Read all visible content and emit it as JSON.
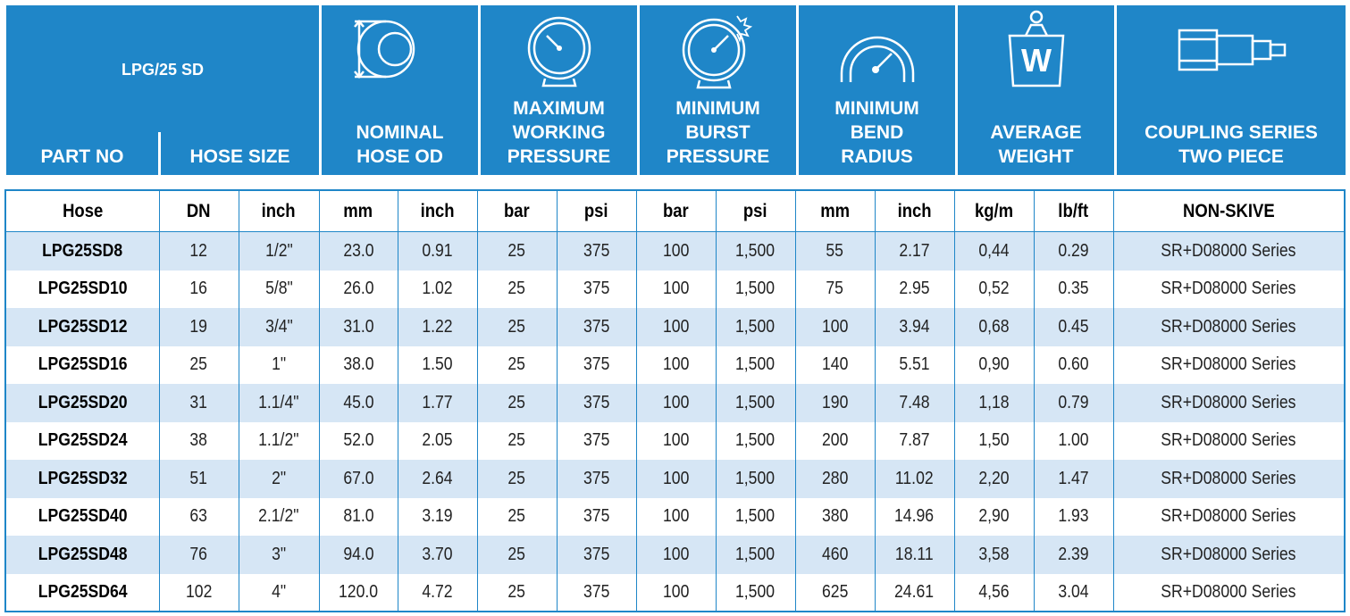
{
  "header": {
    "title": "LPG/25 SD",
    "part_no_label": "PART NO",
    "hose_size_label": "HOSE SIZE",
    "nominal_od_label": "NOMINAL\nHOSE OD",
    "max_working_label": "MAXIMUM\nWORKING\nPRESSURE",
    "min_burst_label": "MINIMUM\nBURST\nPRESSURE",
    "min_bend_label": "MINIMUM\nBEND\nRADIUS",
    "avg_weight_label": "AVERAGE\nWEIGHT",
    "coupling_label": "COUPLING SERIES\nTWO PIECE",
    "weight_icon_letter": "W",
    "accent_color": "#1f86c8",
    "row_alt_color": "#d6e6f5"
  },
  "table": {
    "columns": [
      "Hose",
      "DN",
      "inch",
      "mm",
      "inch",
      "bar",
      "psi",
      "bar",
      "psi",
      "mm",
      "inch",
      "kg/m",
      "lb/ft",
      "NON-SKIVE"
    ],
    "rows": [
      [
        "LPG25SD8",
        "12",
        "1/2\"",
        "23.0",
        "0.91",
        "25",
        "375",
        "100",
        "1,500",
        "55",
        "2.17",
        "0,44",
        "0.29",
        "SR+D08000 Series"
      ],
      [
        "LPG25SD10",
        "16",
        "5/8\"",
        "26.0",
        "1.02",
        "25",
        "375",
        "100",
        "1,500",
        "75",
        "2.95",
        "0,52",
        "0.35",
        "SR+D08000 Series"
      ],
      [
        "LPG25SD12",
        "19",
        "3/4\"",
        "31.0",
        "1.22",
        "25",
        "375",
        "100",
        "1,500",
        "100",
        "3.94",
        "0,68",
        "0.45",
        "SR+D08000 Series"
      ],
      [
        "LPG25SD16",
        "25",
        "1\"",
        "38.0",
        "1.50",
        "25",
        "375",
        "100",
        "1,500",
        "140",
        "5.51",
        "0,90",
        "0.60",
        "SR+D08000 Series"
      ],
      [
        "LPG25SD20",
        "31",
        "1.1/4\"",
        "45.0",
        "1.77",
        "25",
        "375",
        "100",
        "1,500",
        "190",
        "7.48",
        "1,18",
        "0.79",
        "SR+D08000 Series"
      ],
      [
        "LPG25SD24",
        "38",
        "1.1/2\"",
        "52.0",
        "2.05",
        "25",
        "375",
        "100",
        "1,500",
        "200",
        "7.87",
        "1,50",
        "1.00",
        "SR+D08000 Series"
      ],
      [
        "LPG25SD32",
        "51",
        "2\"",
        "67.0",
        "2.64",
        "25",
        "375",
        "100",
        "1,500",
        "280",
        "11.02",
        "2,20",
        "1.47",
        "SR+D08000 Series"
      ],
      [
        "LPG25SD40",
        "63",
        "2.1/2\"",
        "81.0",
        "3.19",
        "25",
        "375",
        "100",
        "1,500",
        "380",
        "14.96",
        "2,90",
        "1.93",
        "SR+D08000 Series"
      ],
      [
        "LPG25SD48",
        "76",
        "3\"",
        "94.0",
        "3.70",
        "25",
        "375",
        "100",
        "1,500",
        "460",
        "18.11",
        "3,58",
        "2.39",
        "SR+D08000 Series"
      ],
      [
        "LPG25SD64",
        "102",
        "4\"",
        "120.0",
        "4.72",
        "25",
        "375",
        "100",
        "1,500",
        "625",
        "24.61",
        "4,56",
        "3.04",
        "SR+D08000 Series"
      ]
    ]
  }
}
